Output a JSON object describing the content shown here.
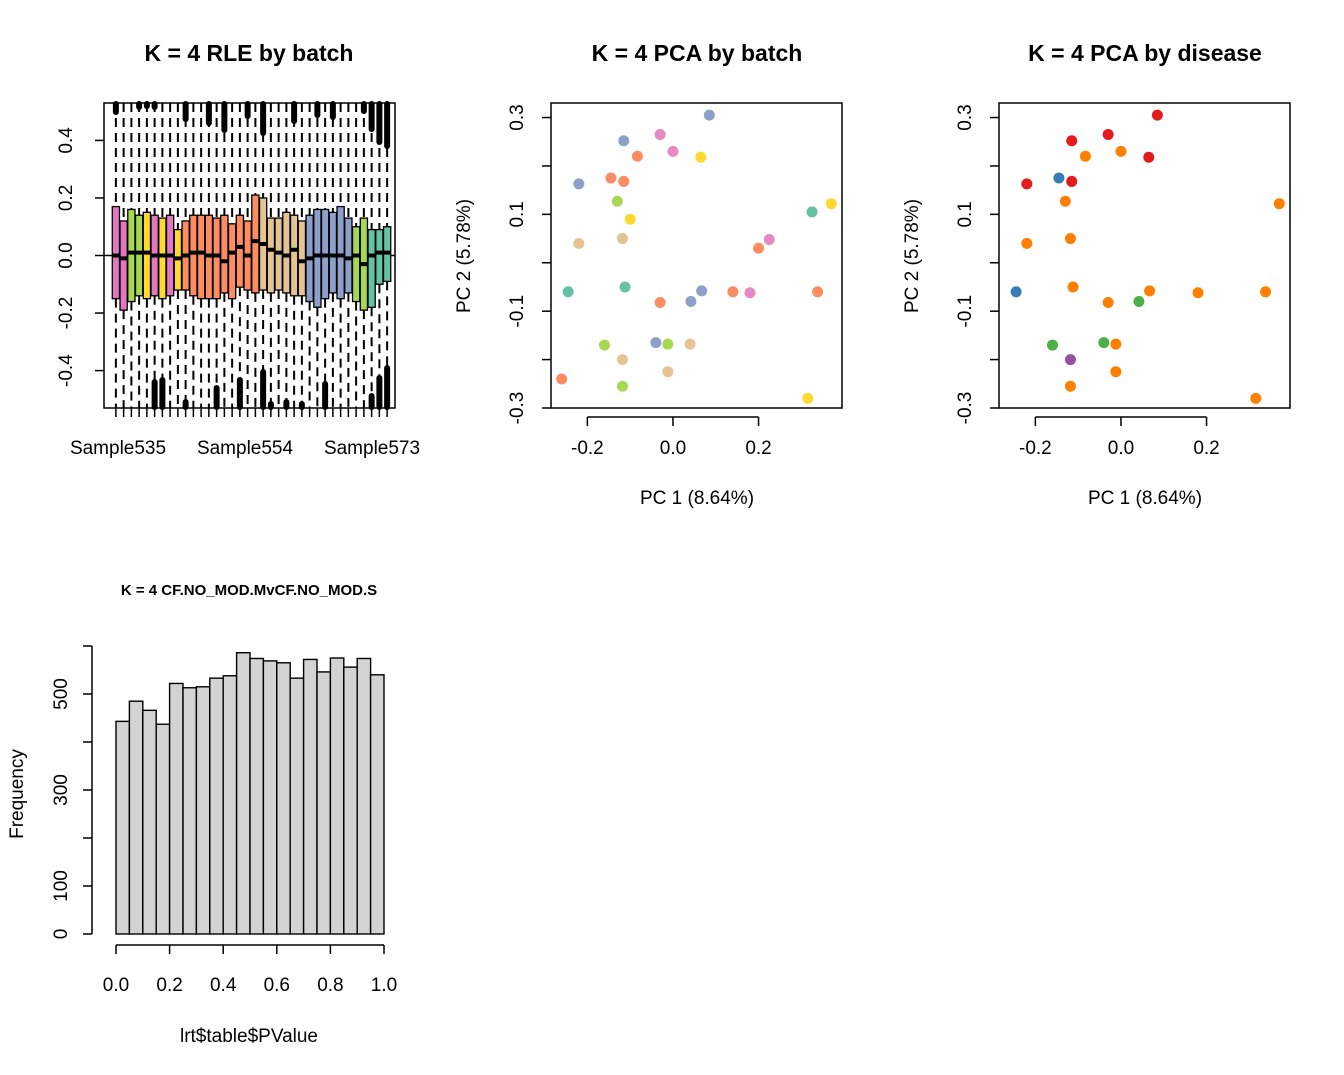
{
  "chart_data": [
    {
      "type": "box",
      "title": "K = 4 RLE by batch",
      "xlabel": "",
      "ylabel": "",
      "ylim": [
        -0.53,
        0.53
      ],
      "yticks": [
        -0.4,
        -0.2,
        0.0,
        0.2,
        0.4
      ],
      "ytick_labels": [
        "-0.4",
        "-0.2",
        "0.0",
        "0.2",
        "0.4"
      ],
      "xtick_labels": [
        "Sample535",
        "Sample554",
        "Sample573"
      ],
      "reference_line": 0,
      "boxes": [
        {
          "q1": -0.15,
          "q3": 0.17,
          "median": 0.0,
          "color": "#E377C2"
        },
        {
          "q1": -0.19,
          "q3": 0.12,
          "median": -0.01,
          "color": "#E377C2"
        },
        {
          "q1": -0.16,
          "q3": 0.16,
          "median": 0.01,
          "color": "#A6D854"
        },
        {
          "q1": -0.14,
          "q3": 0.14,
          "median": 0.01,
          "color": "#A6D854"
        },
        {
          "q1": -0.15,
          "q3": 0.15,
          "median": 0.01,
          "color": "#FFD92F"
        },
        {
          "q1": -0.14,
          "q3": 0.14,
          "median": 0.0,
          "color": "#E377C2"
        },
        {
          "q1": -0.15,
          "q3": 0.13,
          "median": 0.0,
          "color": "#FFD92F"
        },
        {
          "q1": -0.14,
          "q3": 0.14,
          "median": 0.0,
          "color": "#E377C2"
        },
        {
          "q1": -0.12,
          "q3": 0.09,
          "median": -0.01,
          "color": "#FFD92F"
        },
        {
          "q1": -0.12,
          "q3": 0.12,
          "median": 0.0,
          "color": "#FC8D62"
        },
        {
          "q1": -0.14,
          "q3": 0.14,
          "median": 0.01,
          "color": "#FC8D62"
        },
        {
          "q1": -0.15,
          "q3": 0.14,
          "median": 0.01,
          "color": "#FC8D62"
        },
        {
          "q1": -0.15,
          "q3": 0.14,
          "median": 0.0,
          "color": "#FC8D62"
        },
        {
          "q1": -0.15,
          "q3": 0.13,
          "median": 0.0,
          "color": "#FC8D62"
        },
        {
          "q1": -0.13,
          "q3": 0.14,
          "median": -0.02,
          "color": "#FC8D62"
        },
        {
          "q1": -0.15,
          "q3": 0.11,
          "median": 0.01,
          "color": "#FC8D62"
        },
        {
          "q1": -0.11,
          "q3": 0.14,
          "median": 0.03,
          "color": "#FC8D62"
        },
        {
          "q1": -0.12,
          "q3": 0.12,
          "median": 0.0,
          "color": "#FC8D62"
        },
        {
          "q1": -0.13,
          "q3": 0.21,
          "median": 0.05,
          "color": "#FC8D62"
        },
        {
          "q1": -0.12,
          "q3": 0.2,
          "median": 0.04,
          "color": "#E5C494"
        },
        {
          "q1": -0.13,
          "q3": 0.13,
          "median": 0.02,
          "color": "#E5C494"
        },
        {
          "q1": -0.12,
          "q3": 0.13,
          "median": 0.01,
          "color": "#E5C494"
        },
        {
          "q1": -0.13,
          "q3": 0.15,
          "median": 0.0,
          "color": "#E5C494"
        },
        {
          "q1": -0.14,
          "q3": 0.14,
          "median": 0.02,
          "color": "#E5C494"
        },
        {
          "q1": -0.14,
          "q3": 0.12,
          "median": -0.02,
          "color": "#E5C494"
        },
        {
          "q1": -0.16,
          "q3": 0.14,
          "median": -0.01,
          "color": "#8DA0CB"
        },
        {
          "q1": -0.18,
          "q3": 0.16,
          "median": 0.0,
          "color": "#8DA0CB"
        },
        {
          "q1": -0.15,
          "q3": 0.16,
          "median": 0.0,
          "color": "#8DA0CB"
        },
        {
          "q1": -0.13,
          "q3": 0.15,
          "median": 0.0,
          "color": "#8DA0CB"
        },
        {
          "q1": -0.15,
          "q3": 0.17,
          "median": 0.0,
          "color": "#8DA0CB"
        },
        {
          "q1": -0.13,
          "q3": 0.13,
          "median": -0.01,
          "color": "#8DA0CB"
        },
        {
          "q1": -0.16,
          "q3": 0.1,
          "median": 0.0,
          "color": "#A6D854"
        },
        {
          "q1": -0.19,
          "q3": 0.13,
          "median": -0.03,
          "color": "#A6D854"
        },
        {
          "q1": -0.18,
          "q3": 0.09,
          "median": 0.0,
          "color": "#66C2A5"
        },
        {
          "q1": -0.1,
          "q3": 0.09,
          "median": 0.01,
          "color": "#66C2A5"
        },
        {
          "q1": -0.09,
          "q3": 0.1,
          "median": 0.01,
          "color": "#66C2A5"
        }
      ]
    },
    {
      "type": "scatter",
      "title": "K = 4 PCA by batch",
      "xlabel": "PC 1 (8.64%)",
      "ylabel": "PC 2 (5.78%)",
      "xlim": [
        -0.285,
        0.395
      ],
      "ylim": [
        -0.3,
        0.33
      ],
      "xticks": [
        -0.2,
        0.0,
        0.2
      ],
      "xtick_labels": [
        "-0.2",
        "0.0",
        "0.2"
      ],
      "yticks": [
        -0.3,
        -0.1,
        0.1,
        0.3
      ],
      "ytick_labels": [
        "-0.3",
        "-0.1",
        "0.1",
        "0.3"
      ],
      "minor_yticks": [
        -0.2,
        0.0,
        0.2
      ],
      "points": [
        {
          "x": 0.085,
          "y": 0.305,
          "color": "#8DA0CB"
        },
        {
          "x": -0.115,
          "y": 0.252,
          "color": "#8DA0CB"
        },
        {
          "x": -0.03,
          "y": 0.265,
          "color": "#E78AC3"
        },
        {
          "x": -0.083,
          "y": 0.22,
          "color": "#FC8D62"
        },
        {
          "x": 0.0,
          "y": 0.23,
          "color": "#E78AC3"
        },
        {
          "x": 0.065,
          "y": 0.218,
          "color": "#FFD92F"
        },
        {
          "x": -0.145,
          "y": 0.175,
          "color": "#FC8D62"
        },
        {
          "x": -0.115,
          "y": 0.168,
          "color": "#FC8D62"
        },
        {
          "x": -0.22,
          "y": 0.163,
          "color": "#8DA0CB"
        },
        {
          "x": -0.13,
          "y": 0.127,
          "color": "#A6D854"
        },
        {
          "x": 0.37,
          "y": 0.122,
          "color": "#FFD92F"
        },
        {
          "x": 0.325,
          "y": 0.105,
          "color": "#66C2A5"
        },
        {
          "x": -0.1,
          "y": 0.09,
          "color": "#FFD92F"
        },
        {
          "x": -0.118,
          "y": 0.05,
          "color": "#E5C494"
        },
        {
          "x": 0.225,
          "y": 0.048,
          "color": "#E78AC3"
        },
        {
          "x": -0.22,
          "y": 0.04,
          "color": "#E5C494"
        },
        {
          "x": 0.2,
          "y": 0.03,
          "color": "#FC8D62"
        },
        {
          "x": -0.112,
          "y": -0.05,
          "color": "#66C2A5"
        },
        {
          "x": -0.245,
          "y": -0.06,
          "color": "#66C2A5"
        },
        {
          "x": 0.067,
          "y": -0.058,
          "color": "#8DA0CB"
        },
        {
          "x": 0.14,
          "y": -0.06,
          "color": "#FC8D62"
        },
        {
          "x": 0.18,
          "y": -0.062,
          "color": "#E78AC3"
        },
        {
          "x": 0.338,
          "y": -0.06,
          "color": "#FC8D62"
        },
        {
          "x": 0.042,
          "y": -0.08,
          "color": "#8DA0CB"
        },
        {
          "x": -0.03,
          "y": -0.082,
          "color": "#FC8D62"
        },
        {
          "x": -0.16,
          "y": -0.17,
          "color": "#A6D854"
        },
        {
          "x": -0.04,
          "y": -0.165,
          "color": "#8DA0CB"
        },
        {
          "x": -0.012,
          "y": -0.168,
          "color": "#A6D854"
        },
        {
          "x": 0.04,
          "y": -0.168,
          "color": "#E5C494"
        },
        {
          "x": -0.118,
          "y": -0.2,
          "color": "#E5C494"
        },
        {
          "x": -0.012,
          "y": -0.225,
          "color": "#E5C494"
        },
        {
          "x": -0.26,
          "y": -0.24,
          "color": "#FC8D62"
        },
        {
          "x": -0.118,
          "y": -0.255,
          "color": "#A6D854"
        },
        {
          "x": 0.315,
          "y": -0.28,
          "color": "#FFD92F"
        }
      ]
    },
    {
      "type": "scatter",
      "title": "K = 4 PCA by disease",
      "xlabel": "PC 1 (8.64%)",
      "ylabel": "PC 2 (5.78%)",
      "xlim": [
        -0.285,
        0.395
      ],
      "ylim": [
        -0.3,
        0.33
      ],
      "xticks": [
        -0.2,
        0.0,
        0.2
      ],
      "xtick_labels": [
        "-0.2",
        "0.0",
        "0.2"
      ],
      "yticks": [
        -0.3,
        -0.1,
        0.1,
        0.3
      ],
      "ytick_labels": [
        "-0.3",
        "-0.1",
        "0.1",
        "0.3"
      ],
      "minor_yticks": [
        -0.2,
        0.0,
        0.2
      ],
      "points": [
        {
          "x": 0.085,
          "y": 0.305,
          "color": "#E41A1C"
        },
        {
          "x": -0.115,
          "y": 0.252,
          "color": "#E41A1C"
        },
        {
          "x": -0.03,
          "y": 0.265,
          "color": "#E41A1C"
        },
        {
          "x": -0.083,
          "y": 0.22,
          "color": "#FF7F00"
        },
        {
          "x": 0.0,
          "y": 0.23,
          "color": "#FF7F00"
        },
        {
          "x": 0.065,
          "y": 0.218,
          "color": "#E41A1C"
        },
        {
          "x": -0.145,
          "y": 0.175,
          "color": "#377EB8"
        },
        {
          "x": -0.115,
          "y": 0.168,
          "color": "#E41A1C"
        },
        {
          "x": -0.22,
          "y": 0.163,
          "color": "#E41A1C"
        },
        {
          "x": -0.13,
          "y": 0.127,
          "color": "#FF7F00"
        },
        {
          "x": 0.37,
          "y": 0.122,
          "color": "#FF7F00"
        },
        {
          "x": -0.118,
          "y": 0.05,
          "color": "#FF7F00"
        },
        {
          "x": -0.22,
          "y": 0.04,
          "color": "#FF7F00"
        },
        {
          "x": -0.112,
          "y": -0.05,
          "color": "#FF7F00"
        },
        {
          "x": -0.245,
          "y": -0.06,
          "color": "#377EB8"
        },
        {
          "x": 0.067,
          "y": -0.058,
          "color": "#FF7F00"
        },
        {
          "x": 0.18,
          "y": -0.062,
          "color": "#FF7F00"
        },
        {
          "x": 0.338,
          "y": -0.06,
          "color": "#FF7F00"
        },
        {
          "x": 0.042,
          "y": -0.08,
          "color": "#4DAF4A"
        },
        {
          "x": -0.03,
          "y": -0.082,
          "color": "#FF7F00"
        },
        {
          "x": -0.16,
          "y": -0.17,
          "color": "#4DAF4A"
        },
        {
          "x": -0.04,
          "y": -0.165,
          "color": "#4DAF4A"
        },
        {
          "x": -0.012,
          "y": -0.168,
          "color": "#FF7F00"
        },
        {
          "x": -0.118,
          "y": -0.2,
          "color": "#984EA3"
        },
        {
          "x": -0.012,
          "y": -0.225,
          "color": "#FF7F00"
        },
        {
          "x": -0.118,
          "y": -0.255,
          "color": "#FF7F00"
        },
        {
          "x": 0.315,
          "y": -0.28,
          "color": "#FF7F00"
        }
      ]
    },
    {
      "type": "histogram",
      "title": "K = 4 CF.NO_MOD.MvCF.NO_MOD.S",
      "xlabel": "lrt$table$PValue",
      "ylabel": "Frequency",
      "xlim": [
        0,
        1
      ],
      "ylim": [
        0,
        600
      ],
      "xticks": [
        0.0,
        0.2,
        0.4,
        0.6,
        0.8,
        1.0
      ],
      "xtick_labels": [
        "0.0",
        "0.2",
        "0.4",
        "0.6",
        "0.8",
        "1.0"
      ],
      "yticks": [
        0,
        100,
        300,
        500
      ],
      "ytick_labels": [
        "0",
        "100",
        "300",
        "500"
      ],
      "minor_yticks": [
        200,
        400,
        600
      ],
      "bin_width": 0.05,
      "counts": [
        443,
        485,
        466,
        437,
        522,
        513,
        515,
        533,
        538,
        586,
        574,
        569,
        565,
        533,
        572,
        546,
        575,
        556,
        574,
        540
      ],
      "bar_color": "#D3D3D3"
    }
  ]
}
